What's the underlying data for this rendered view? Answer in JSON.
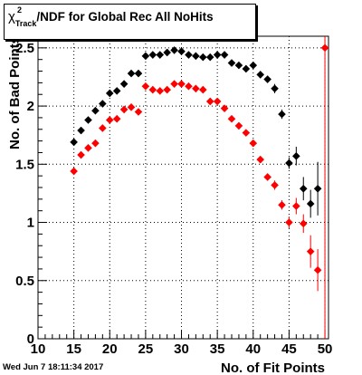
{
  "title": {
    "symbol": "χ",
    "superscript": "2",
    "subscript": "Track",
    "text": "/NDF for Global Rec All NoHits"
  },
  "footer": {
    "datetime": "Wed Jun  7 18:11:34 2017"
  },
  "chart_data": {
    "type": "scatter",
    "title": "χ²Track/NDF for Global Rec All NoHits",
    "xlabel": "No. of Fit Points",
    "ylabel": "No. of Bad Points",
    "xlim": [
      10,
      50.5
    ],
    "ylim": [
      0,
      2.6
    ],
    "x_ticks": [
      10,
      15,
      20,
      25,
      30,
      35,
      40,
      45,
      50
    ],
    "y_ticks": [
      0,
      0.5,
      1,
      1.5,
      2,
      2.5
    ],
    "y_tick_labels": [
      "0",
      "0.5",
      "1",
      "1.5",
      "2",
      "2.5"
    ],
    "grid": true,
    "series": [
      {
        "color": "#000000",
        "x": [
          15,
          16,
          17,
          18,
          19,
          20,
          21,
          22,
          23,
          24,
          25,
          26,
          27,
          28,
          29,
          30,
          31,
          32,
          33,
          34,
          35,
          36,
          37,
          38,
          39,
          40,
          41,
          42,
          43,
          44,
          45,
          46,
          47,
          48,
          49
        ],
        "y": [
          1.69,
          1.79,
          1.88,
          1.96,
          2.02,
          2.11,
          2.13,
          2.19,
          2.28,
          2.28,
          2.43,
          2.44,
          2.44,
          2.46,
          2.48,
          2.47,
          2.44,
          2.43,
          2.42,
          2.42,
          2.44,
          2.44,
          2.37,
          2.35,
          2.32,
          2.35,
          2.27,
          2.23,
          2.15,
          1.93,
          1.51,
          1.57,
          1.29,
          1.16,
          1.29
        ],
        "err": [
          0.03,
          0.03,
          0.03,
          0.03,
          0.03,
          0.03,
          0.03,
          0.03,
          0.03,
          0.03,
          0.03,
          0.03,
          0.03,
          0.03,
          0.03,
          0.03,
          0.03,
          0.03,
          0.03,
          0.03,
          0.03,
          0.03,
          0.03,
          0.03,
          0.03,
          0.03,
          0.03,
          0.03,
          0.04,
          0.04,
          0.05,
          0.08,
          0.1,
          0.12,
          0.23
        ]
      },
      {
        "color": "#ff0000",
        "x": [
          15,
          16,
          17,
          18,
          19,
          20,
          21,
          22,
          23,
          24,
          25,
          26,
          27,
          28,
          29,
          30,
          31,
          32,
          33,
          34,
          35,
          36,
          37,
          38,
          39,
          40,
          41,
          42,
          43,
          44,
          45,
          46,
          47,
          48,
          49,
          50
        ],
        "y": [
          1.44,
          1.58,
          1.64,
          1.68,
          1.81,
          1.88,
          1.89,
          1.97,
          1.99,
          1.95,
          2.17,
          2.14,
          2.13,
          2.14,
          2.19,
          2.19,
          2.17,
          2.15,
          2.14,
          2.04,
          2.04,
          1.98,
          1.89,
          1.83,
          1.77,
          1.68,
          1.54,
          1.39,
          1.32,
          1.15,
          1.0,
          1.14,
          0.99,
          0.75,
          0.59,
          2.5
        ],
        "err": [
          0.03,
          0.03,
          0.03,
          0.03,
          0.03,
          0.03,
          0.03,
          0.03,
          0.03,
          0.03,
          0.03,
          0.03,
          0.03,
          0.03,
          0.03,
          0.03,
          0.03,
          0.03,
          0.03,
          0.03,
          0.03,
          0.03,
          0.03,
          0.03,
          0.03,
          0.03,
          0.03,
          0.03,
          0.04,
          0.04,
          0.05,
          0.07,
          0.08,
          0.14,
          0.18,
          2.5
        ]
      }
    ]
  }
}
